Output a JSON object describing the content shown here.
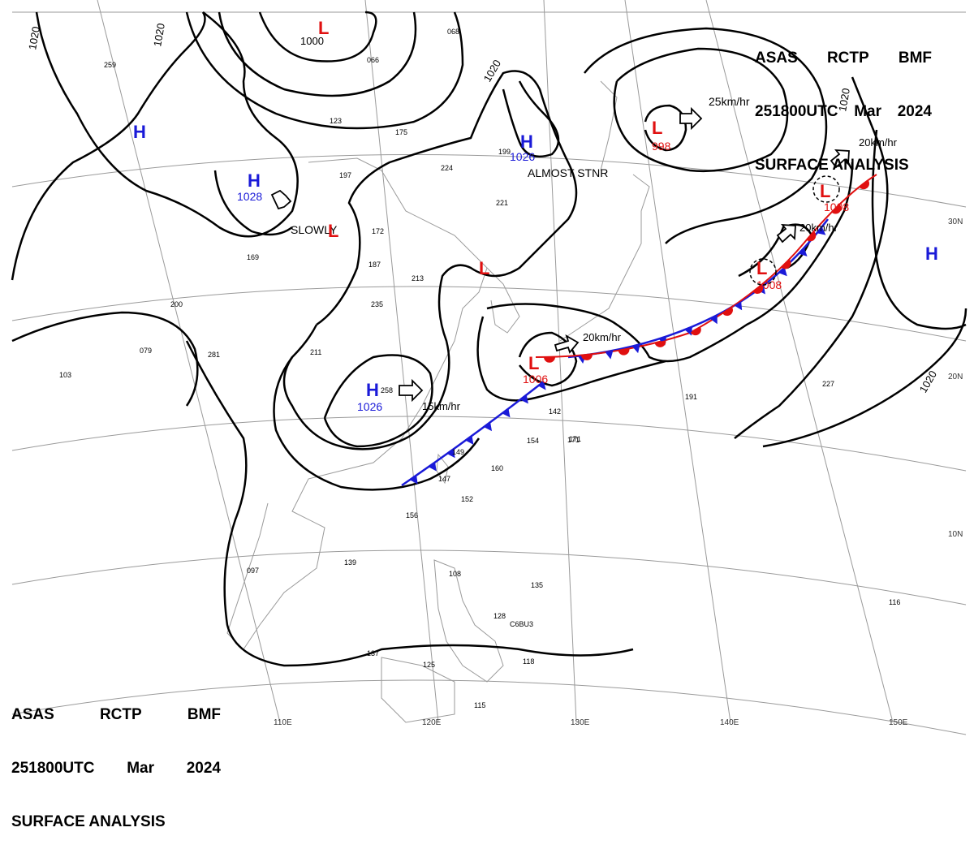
{
  "header": {
    "line1": [
      "ASAS",
      "RCTP",
      "BMF"
    ],
    "line2": [
      "251800UTC",
      "Mar",
      "2024"
    ],
    "line3": "SURFACE ANALYSIS"
  },
  "pressure_centers": [
    {
      "type": "H",
      "value": "1028",
      "note": "SLOWLY"
    },
    {
      "type": "H",
      "value": "1026",
      "note": "ALMOST STNR"
    },
    {
      "type": "H",
      "value": "1026",
      "note": "15km/hr"
    },
    {
      "type": "H",
      "value": "",
      "note": ""
    },
    {
      "type": "H",
      "value": "",
      "note": ""
    },
    {
      "type": "L",
      "value": "1000",
      "note": ""
    },
    {
      "type": "L",
      "value": "998",
      "note": "25km/hr"
    },
    {
      "type": "L",
      "value": "1006",
      "note": "20km/hr"
    },
    {
      "type": "L",
      "value": "1008",
      "note": "20km/hr"
    },
    {
      "type": "L",
      "value": "1008",
      "note": "20km/hr"
    },
    {
      "type": "L",
      "value": "",
      "note": ""
    },
    {
      "type": "L",
      "value": "",
      "note": ""
    }
  ],
  "isobar_labels": [
    "1020",
    "1020",
    "1020",
    "1020",
    "1020",
    "1000"
  ],
  "grid_labels": {
    "lon": [
      "110E",
      "120E",
      "130E",
      "140E",
      "150E"
    ],
    "lat": [
      "30N",
      "20N",
      "10N"
    ]
  },
  "station_samples": [
    "259",
    "066",
    "123",
    "175",
    "197",
    "224",
    "199",
    "221",
    "172",
    "187",
    "213",
    "235",
    "211",
    "200",
    "281",
    "103",
    "079",
    "169",
    "258",
    "142",
    "154",
    "149",
    "160",
    "147",
    "152",
    "156",
    "171",
    "139",
    "097",
    "137",
    "125",
    "108",
    "135",
    "128",
    "118",
    "115",
    "116",
    "191",
    "227",
    "068",
    "171",
    "C6BU3"
  ],
  "colors": {
    "high": "#1a1ad8",
    "low": "#e01010",
    "front_cold": "#1a1ad8",
    "front_warm": "#e01010",
    "isobar": "#000000",
    "grid": "#9a9a9a"
  }
}
